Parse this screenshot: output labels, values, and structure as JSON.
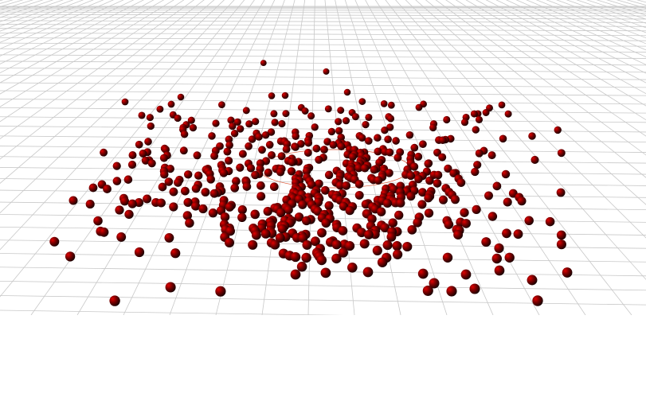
{
  "scene": {
    "background": "#ffffff",
    "grid_color": "#c8c8c8",
    "sphere_highlight": "#e00000",
    "sphere_mid": "#7a0000",
    "sphere_shadow": "#140000",
    "marker_line_color": "#e05a3a"
  }
}
